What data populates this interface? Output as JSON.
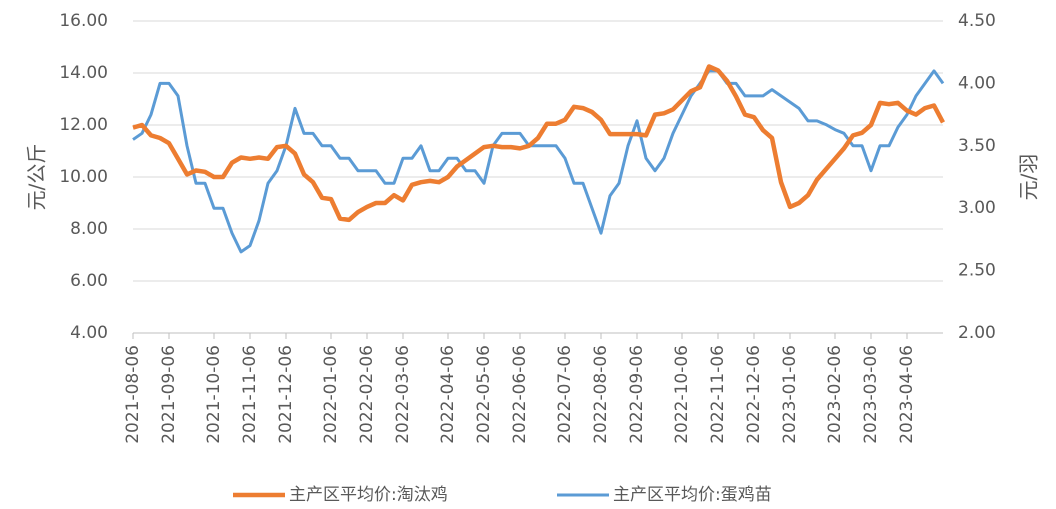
{
  "chart_data": {
    "type": "line",
    "categories": [
      "2021-08-06",
      null,
      null,
      null,
      "2021-09-06",
      null,
      null,
      null,
      null,
      "2021-10-06",
      null,
      null,
      null,
      "2021-11-06",
      null,
      null,
      null,
      "2021-12-06",
      null,
      null,
      null,
      null,
      "2022-01-06",
      null,
      null,
      null,
      "2022-02-06",
      null,
      null,
      null,
      "2022-03-06",
      null,
      null,
      null,
      null,
      "2022-04-06",
      null,
      null,
      null,
      "2022-05-06",
      null,
      null,
      null,
      "2022-06-06",
      null,
      null,
      null,
      null,
      "2022-07-06",
      null,
      null,
      null,
      "2022-08-06",
      null,
      null,
      null,
      "2022-09-06",
      null,
      null,
      null,
      null,
      "2022-10-06",
      null,
      null,
      null,
      "2022-11-06",
      null,
      null,
      null,
      "2022-12-06",
      null,
      null,
      null,
      "2023-01-06",
      null,
      null,
      null,
      null,
      "2023-02-06",
      null,
      null,
      null,
      "2023-03-06",
      null,
      null,
      null,
      "2023-04-06",
      null,
      null,
      null,
      null
    ],
    "series": [
      {
        "name": "主产区平均价:淘汰鸡",
        "color": "#ED7D31",
        "values": [
          11.9,
          12.0,
          11.6,
          11.5,
          11.3,
          10.7,
          10.1,
          10.25,
          10.2,
          10.0,
          10.0,
          10.55,
          10.75,
          10.7,
          10.75,
          10.7,
          11.15,
          11.2,
          10.9,
          10.1,
          9.8,
          9.2,
          9.15,
          8.4,
          8.35,
          8.65,
          8.85,
          9.0,
          9.0,
          9.3,
          9.1,
          9.7,
          9.8,
          9.85,
          9.8,
          10.0,
          10.4,
          10.65,
          10.9,
          11.15,
          11.2,
          11.15,
          11.15,
          11.1,
          11.2,
          11.5,
          12.05,
          12.05,
          12.2,
          12.7,
          12.65,
          12.5,
          12.2,
          11.65,
          11.65,
          11.65,
          11.65,
          11.6,
          12.4,
          12.45,
          12.6,
          12.95,
          13.3,
          13.45,
          14.25,
          14.1,
          13.7,
          13.1,
          12.4,
          12.3,
          11.8,
          11.5,
          9.8,
          8.85,
          9.0,
          9.3,
          9.9,
          10.3,
          10.7,
          11.1,
          11.6,
          11.7,
          12.0,
          12.85,
          12.8,
          12.85,
          12.55,
          12.4,
          12.65,
          12.75,
          12.1
        ]
      },
      {
        "name": "主产区平均价:蛋鸡苗",
        "color": "#5B9BD5",
        "axis": "y2",
        "values": [
          3.55,
          3.6,
          3.75,
          4.0,
          4.0,
          3.9,
          3.5,
          3.2,
          3.2,
          3.0,
          3.0,
          2.8,
          2.65,
          2.7,
          2.9,
          3.2,
          3.3,
          3.5,
          3.8,
          3.6,
          3.6,
          3.5,
          3.5,
          3.4,
          3.4,
          3.3,
          3.3,
          3.3,
          3.2,
          3.2,
          3.4,
          3.4,
          3.5,
          3.3,
          3.3,
          3.4,
          3.4,
          3.3,
          3.3,
          3.2,
          3.5,
          3.6,
          3.6,
          3.6,
          3.5,
          3.5,
          3.5,
          3.5,
          3.4,
          3.2,
          3.2,
          3.0,
          2.8,
          3.1,
          3.2,
          3.5,
          3.7,
          3.4,
          3.3,
          3.4,
          3.6,
          3.75,
          3.9,
          4.0,
          4.1,
          4.1,
          4.0,
          4.0,
          3.9,
          3.9,
          3.9,
          3.95,
          3.9,
          3.85,
          3.8,
          3.7,
          3.7,
          3.67,
          3.63,
          3.6,
          3.5,
          3.5,
          3.3,
          3.5,
          3.5,
          3.65,
          3.75,
          3.9,
          4.0,
          4.1,
          4.0
        ]
      }
    ],
    "ylabel": "元/公斤",
    "y2label": "元/羽",
    "ylim": [
      4,
      16
    ],
    "yticks": [
      {
        "value": 4,
        "label": "4.00"
      },
      {
        "value": 6,
        "label": "6.00"
      },
      {
        "value": 8,
        "label": "8.00"
      },
      {
        "value": 10,
        "label": "10.00"
      },
      {
        "value": 12,
        "label": "12.00"
      },
      {
        "value": 14,
        "label": "14.00"
      },
      {
        "value": 16,
        "label": "16.00"
      }
    ],
    "y2lim": [
      2,
      4.5
    ],
    "y2ticks": [
      {
        "value": 2,
        "label": "2.00"
      },
      {
        "value": 2.5,
        "label": "2.50"
      },
      {
        "value": 3,
        "label": "3.00"
      },
      {
        "value": 3.5,
        "label": "3.50"
      },
      {
        "value": 4,
        "label": "4.00"
      },
      {
        "value": 4.5,
        "label": "4.50"
      }
    ],
    "grid": true,
    "legend": "bottom"
  }
}
